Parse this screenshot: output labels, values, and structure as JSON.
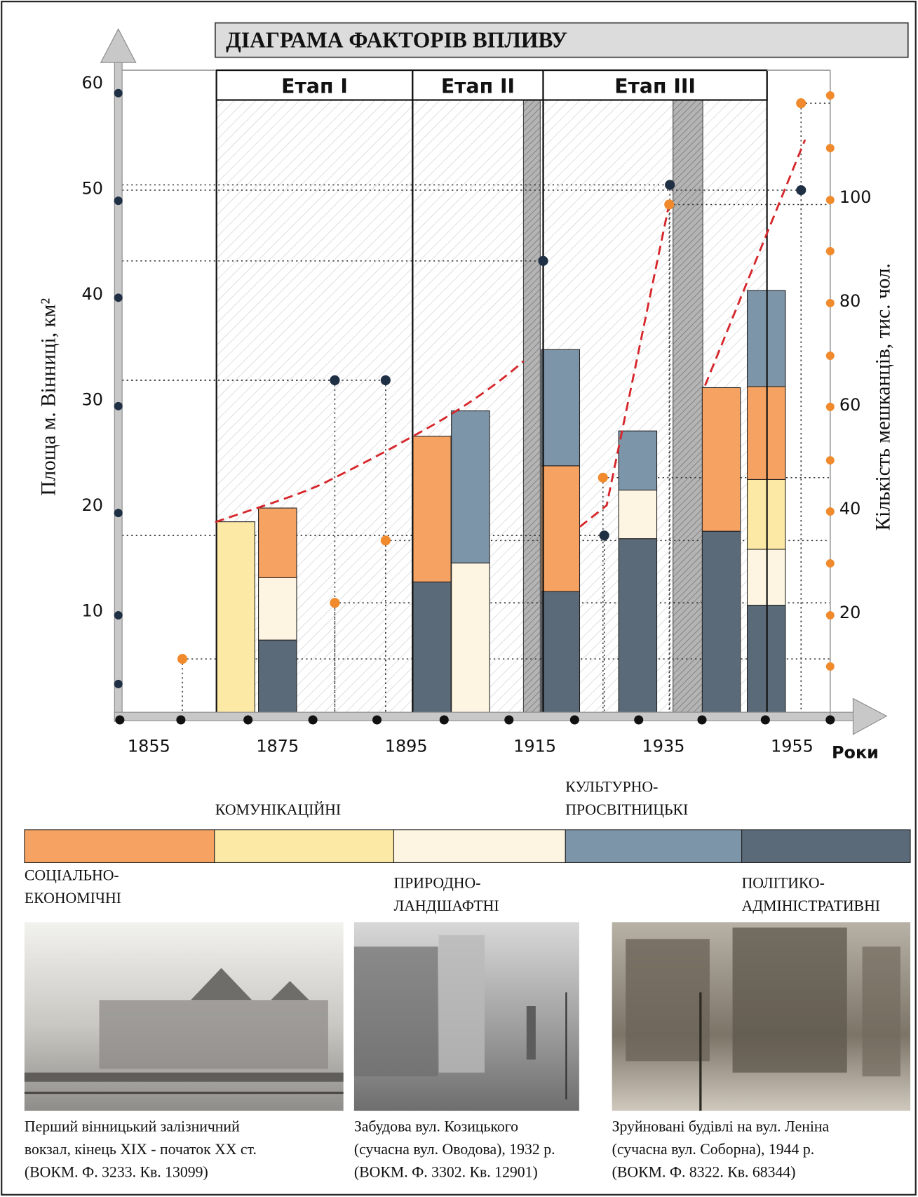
{
  "chart_data": {
    "type": "bar",
    "stacked": true,
    "title": "ДІАГРАМА ФАКТОРІВ ВПЛИВУ",
    "x_label": "Роки",
    "y_label": "Площа м. Вінниці, км²",
    "y2_label": "Кількість мешканців, тис. чол.",
    "x": [
      1868.5,
      1875,
      1899,
      1905,
      1919,
      1931,
      1944,
      1951
    ],
    "xlim": [
      1850,
      1962
    ],
    "xticks": [
      1855,
      1875,
      1895,
      1915,
      1935,
      1955
    ],
    "ylim": [
      0,
      60
    ],
    "yticks": [
      10,
      20,
      30,
      40,
      50,
      60
    ],
    "y2lim": [
      0,
      122
    ],
    "y2ticks": [
      20,
      40,
      60,
      80,
      100
    ],
    "series": [
      {
        "name": "ПОЛІТИКО-\nАДМІНІСТРАТИВНІ",
        "color": "#5a6a78",
        "values": [
          null,
          7.2,
          12.7,
          null,
          11.8,
          16.8,
          17.5,
          10.5
        ]
      },
      {
        "name": "ПРИРОДНО-\nЛАНДШАФТНІ",
        "color": "#fdf4e1",
        "values": [
          null,
          5.9,
          null,
          14.5,
          null,
          4.6,
          null,
          5.3
        ]
      },
      {
        "name": "КОМУНІКАЦІЙНІ",
        "color": "#fce9a5",
        "values": [
          18.4,
          null,
          null,
          null,
          null,
          null,
          null,
          6.6
        ]
      },
      {
        "name": "СОЦІАЛЬНО-\nЕКОНОМІЧНІ",
        "color": "#f5a262",
        "values": [
          null,
          6.6,
          13.8,
          null,
          11.9,
          null,
          13.6,
          8.8
        ]
      },
      {
        "name": "КУЛЬТУРНО-\nПРОСВІТНИЦЬКІ",
        "color": "#7d95a8",
        "values": [
          null,
          null,
          null,
          14.4,
          11.0,
          5.6,
          null,
          9.1
        ]
      }
    ],
    "stages": [
      {
        "label": "Етап I",
        "range": [
          1865.5,
          1896
        ]
      },
      {
        "label": "Етап II",
        "range": [
          1896,
          1916.3
        ]
      },
      {
        "label": "Етап III",
        "range": [
          1916.3,
          1951.1
        ]
      }
    ],
    "area_points": {
      "color": "#1f2f44",
      "x": [
        1883.9,
        1891.8,
        1916.3,
        1925.8,
        1936,
        1956.4
      ],
      "values": [
        31.8,
        31.8,
        43.1,
        17.1,
        50.3,
        49.8
      ]
    },
    "population_points": {
      "color": "#f08a2c",
      "axis": "y2",
      "x": [
        1860.2,
        1883.9,
        1891.8,
        1925.6,
        1935.9,
        1956.4
      ],
      "values": [
        11,
        21.8,
        33.8,
        45.9,
        98.5,
        118
      ]
    }
  },
  "photos": [
    {
      "caption": "Перший вінницький залізничний\nвокзал, кінець XIX - початок XX ст.\n(ВОКМ. Ф. 3233. Кв. 13099)"
    },
    {
      "caption": "Забудова вул. Козицького\n(сучасна вул. Оводова), 1932 р.\n(ВОКМ. Ф. 3302. Кв. 12901)"
    },
    {
      "caption": "Зруйновані будівлі на вул. Леніна\n(сучасна вул. Соборна), 1944 р.\n(ВОКМ. Ф. 8322. Кв. 68344)"
    }
  ]
}
